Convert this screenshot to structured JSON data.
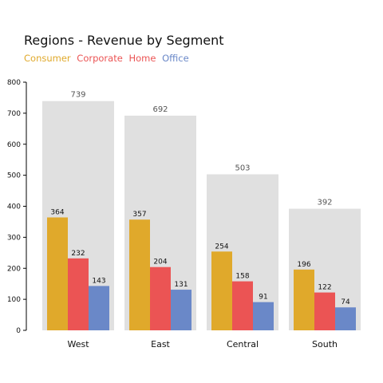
{
  "chart_data": {
    "type": "bar",
    "title": "Regions - Revenue by Segment",
    "xlabel": "",
    "ylabel": "",
    "categories": [
      "West",
      "East",
      "Central",
      "South"
    ],
    "series": [
      {
        "name": "Consumer",
        "color": "#E0A92B",
        "values": [
          364,
          357,
          254,
          196
        ]
      },
      {
        "name": "Corporate",
        "color": "#EB5454",
        "values": [
          232,
          204,
          158,
          122
        ]
      },
      {
        "name": "Home Office",
        "color": "#6A88C8",
        "values": [
          143,
          131,
          91,
          74
        ]
      }
    ],
    "totals": [
      739,
      692,
      503,
      392
    ],
    "total_color": "#E0E0E0",
    "ylim": [
      0,
      800
    ],
    "yticks": [
      0,
      100,
      200,
      300,
      400,
      500,
      600,
      700,
      800
    ],
    "grid": false,
    "legend_position": "top-left",
    "legend_text": [
      {
        "text": "Consumer",
        "color": "#E0A92B"
      },
      {
        "text": "Corporate",
        "color": "#EB5454"
      },
      {
        "text": "Home",
        "color": "#EB5454"
      },
      {
        "text": "Office",
        "color": "#6A88C8"
      }
    ]
  }
}
